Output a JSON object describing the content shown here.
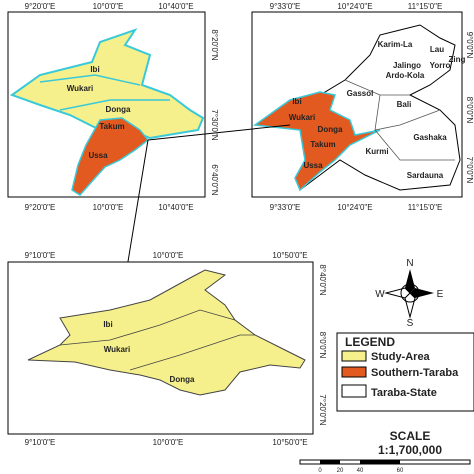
{
  "inset_map": {
    "lon_labels_top": [
      "9°20'0\"E",
      "10°0'0\"E",
      "10°40'0\"E"
    ],
    "lon_labels_bottom": [
      "9°20'0\"E",
      "10°0'0\"E",
      "10°40'0\"E"
    ],
    "lat_labels": [
      "8°20'0\"N",
      "7°30'0\"N",
      "6°40'0\"N"
    ],
    "regions": [
      "Ibi",
      "Wukari",
      "Donga",
      "Takum",
      "Ussa"
    ]
  },
  "state_map": {
    "lon_labels_top": [
      "9°33'0\"E",
      "10°24'0\"E",
      "11°15'0\"E"
    ],
    "lon_labels_bottom": [
      "9°33'0\"E",
      "10°24'0\"E",
      "11°15'0\"E"
    ],
    "lat_labels": [
      "9°0'0\"N",
      "8°0'0\"N",
      "7°0'0\"N"
    ],
    "regions": [
      "Karim-La",
      "Lau",
      "Zing",
      "Jalingo",
      "Yorro",
      "Ardo-Kola",
      "Gassol",
      "Bali",
      "Ibi",
      "Wukari",
      "Donga",
      "Takum",
      "Gashaka",
      "Kurmi",
      "Ussa",
      "Sardauna"
    ]
  },
  "study_map": {
    "lon_labels_top": [
      "9°10'0\"E",
      "10°0'0\"E",
      "10°50'0\"E"
    ],
    "lon_labels_bottom": [
      "9°10'0\"E",
      "10°0'0\"E",
      "10°50'0\"E"
    ],
    "lat_labels": [
      "8°40'0\"N",
      "8°0'0\"N",
      "7°20'0\"N"
    ],
    "regions": [
      "Ibi",
      "Wukari",
      "Donga"
    ]
  },
  "compass": {
    "north": "N",
    "south": "S",
    "east": "E",
    "west": "W"
  },
  "legend": {
    "title": "LEGEND",
    "items": [
      "Study-Area",
      "Southern-Taraba",
      "Taraba-State"
    ]
  },
  "scale": {
    "title": "SCALE",
    "ratio": "1:1,700,000",
    "bar_labels": [
      "0",
      "20",
      "40",
      "60"
    ]
  }
}
